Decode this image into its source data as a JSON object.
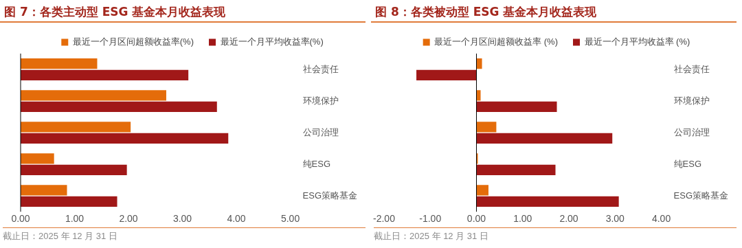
{
  "chart_data": [
    {
      "type": "bar",
      "orientation": "horizontal",
      "title": "图 7：各类主动型 ESG 基金本月收益表现",
      "categories": [
        "社会责任",
        "环境保护",
        "公司治理",
        "纯ESG",
        "ESG策略基金"
      ],
      "series": [
        {
          "name": "最近一个月区间超额收益率(%)",
          "color": "#e46c0a",
          "values": [
            1.42,
            2.7,
            2.04,
            0.62,
            0.86
          ]
        },
        {
          "name": "最近一个月平均收益率(%)",
          "color": "#a11818",
          "values": [
            3.11,
            3.64,
            3.85,
            1.97,
            1.79
          ]
        }
      ],
      "xlim": [
        0,
        5
      ],
      "xticks": [
        {
          "value": 0,
          "label": "0.00"
        },
        {
          "value": 1,
          "label": "1.00"
        },
        {
          "value": 2,
          "label": "2.00"
        },
        {
          "value": 3,
          "label": "3.00"
        },
        {
          "value": 4,
          "label": "4.00"
        },
        {
          "value": 5,
          "label": "5.00"
        }
      ],
      "legend": "top",
      "grid": false,
      "ref_lines": [
        {
          "axis": "x",
          "value": 0,
          "color": "#000000"
        }
      ],
      "annotations": [
        "截止日：2025 年 12 月 31 日"
      ]
    },
    {
      "type": "bar",
      "orientation": "horizontal",
      "title": "图 8：各类被动型 ESG 基金本月收益表现",
      "categories": [
        "社会责任",
        "环境保护",
        "公司治理",
        "纯ESG",
        "ESG策略基金"
      ],
      "series": [
        {
          "name": "最近一个月区间超额收益率 (%)",
          "color": "#e46c0a",
          "values": [
            0.12,
            0.09,
            0.43,
            0.03,
            0.26
          ]
        },
        {
          "name": "最近一个月平均收益率 (%)",
          "color": "#a11818",
          "values": [
            -1.3,
            1.74,
            2.94,
            1.71,
            3.08
          ]
        }
      ],
      "xlim": [
        -2,
        4
      ],
      "xticks": [
        {
          "value": -2,
          "label": "-2.00"
        },
        {
          "value": -1,
          "label": "-1.00"
        },
        {
          "value": 0,
          "label": "0.00"
        },
        {
          "value": 1,
          "label": "1.00"
        },
        {
          "value": 2,
          "label": "2.00"
        },
        {
          "value": 3,
          "label": "3.00"
        },
        {
          "value": 4,
          "label": "4.00"
        }
      ],
      "legend": "top",
      "grid": false,
      "ref_lines": [
        {
          "axis": "x",
          "value": 0,
          "color": "#000000"
        }
      ],
      "annotations": [
        "截止日：2025 年 12 月 31 日"
      ]
    }
  ]
}
